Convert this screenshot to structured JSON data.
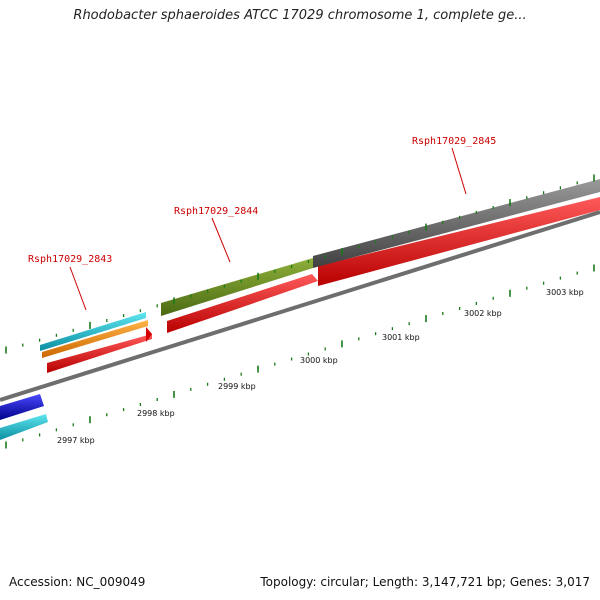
{
  "title": "Rhodobacter sphaeroides ATCC 17029 chromosome 1, complete ge...",
  "accession_text": "Accession: NC_009049",
  "summary_text": "Topology: circular; Length: 3,147,721 bp; Genes: 3,017",
  "gene_labels": [
    {
      "id": "gene-label-2843",
      "text": "Rsph17029_2843"
    },
    {
      "id": "gene-label-2844",
      "text": "Rsph17029_2844"
    },
    {
      "id": "gene-label-2845",
      "text": "Rsph17029_2845"
    }
  ],
  "kbp_labels": [
    "2997 kbp",
    "2998 kbp",
    "2999 kbp",
    "3000 kbp",
    "3001 kbp",
    "3002 kbp",
    "3003 kbp"
  ],
  "colors": {
    "red": "#ff0000",
    "grey": "#6e6e6e",
    "olive": "#6b8e23",
    "cyan": "#11c6d6",
    "orange": "#ff8c00",
    "blue": "#1010e0",
    "tick": "#1a7a1a",
    "label_red": "#cc0000"
  }
}
